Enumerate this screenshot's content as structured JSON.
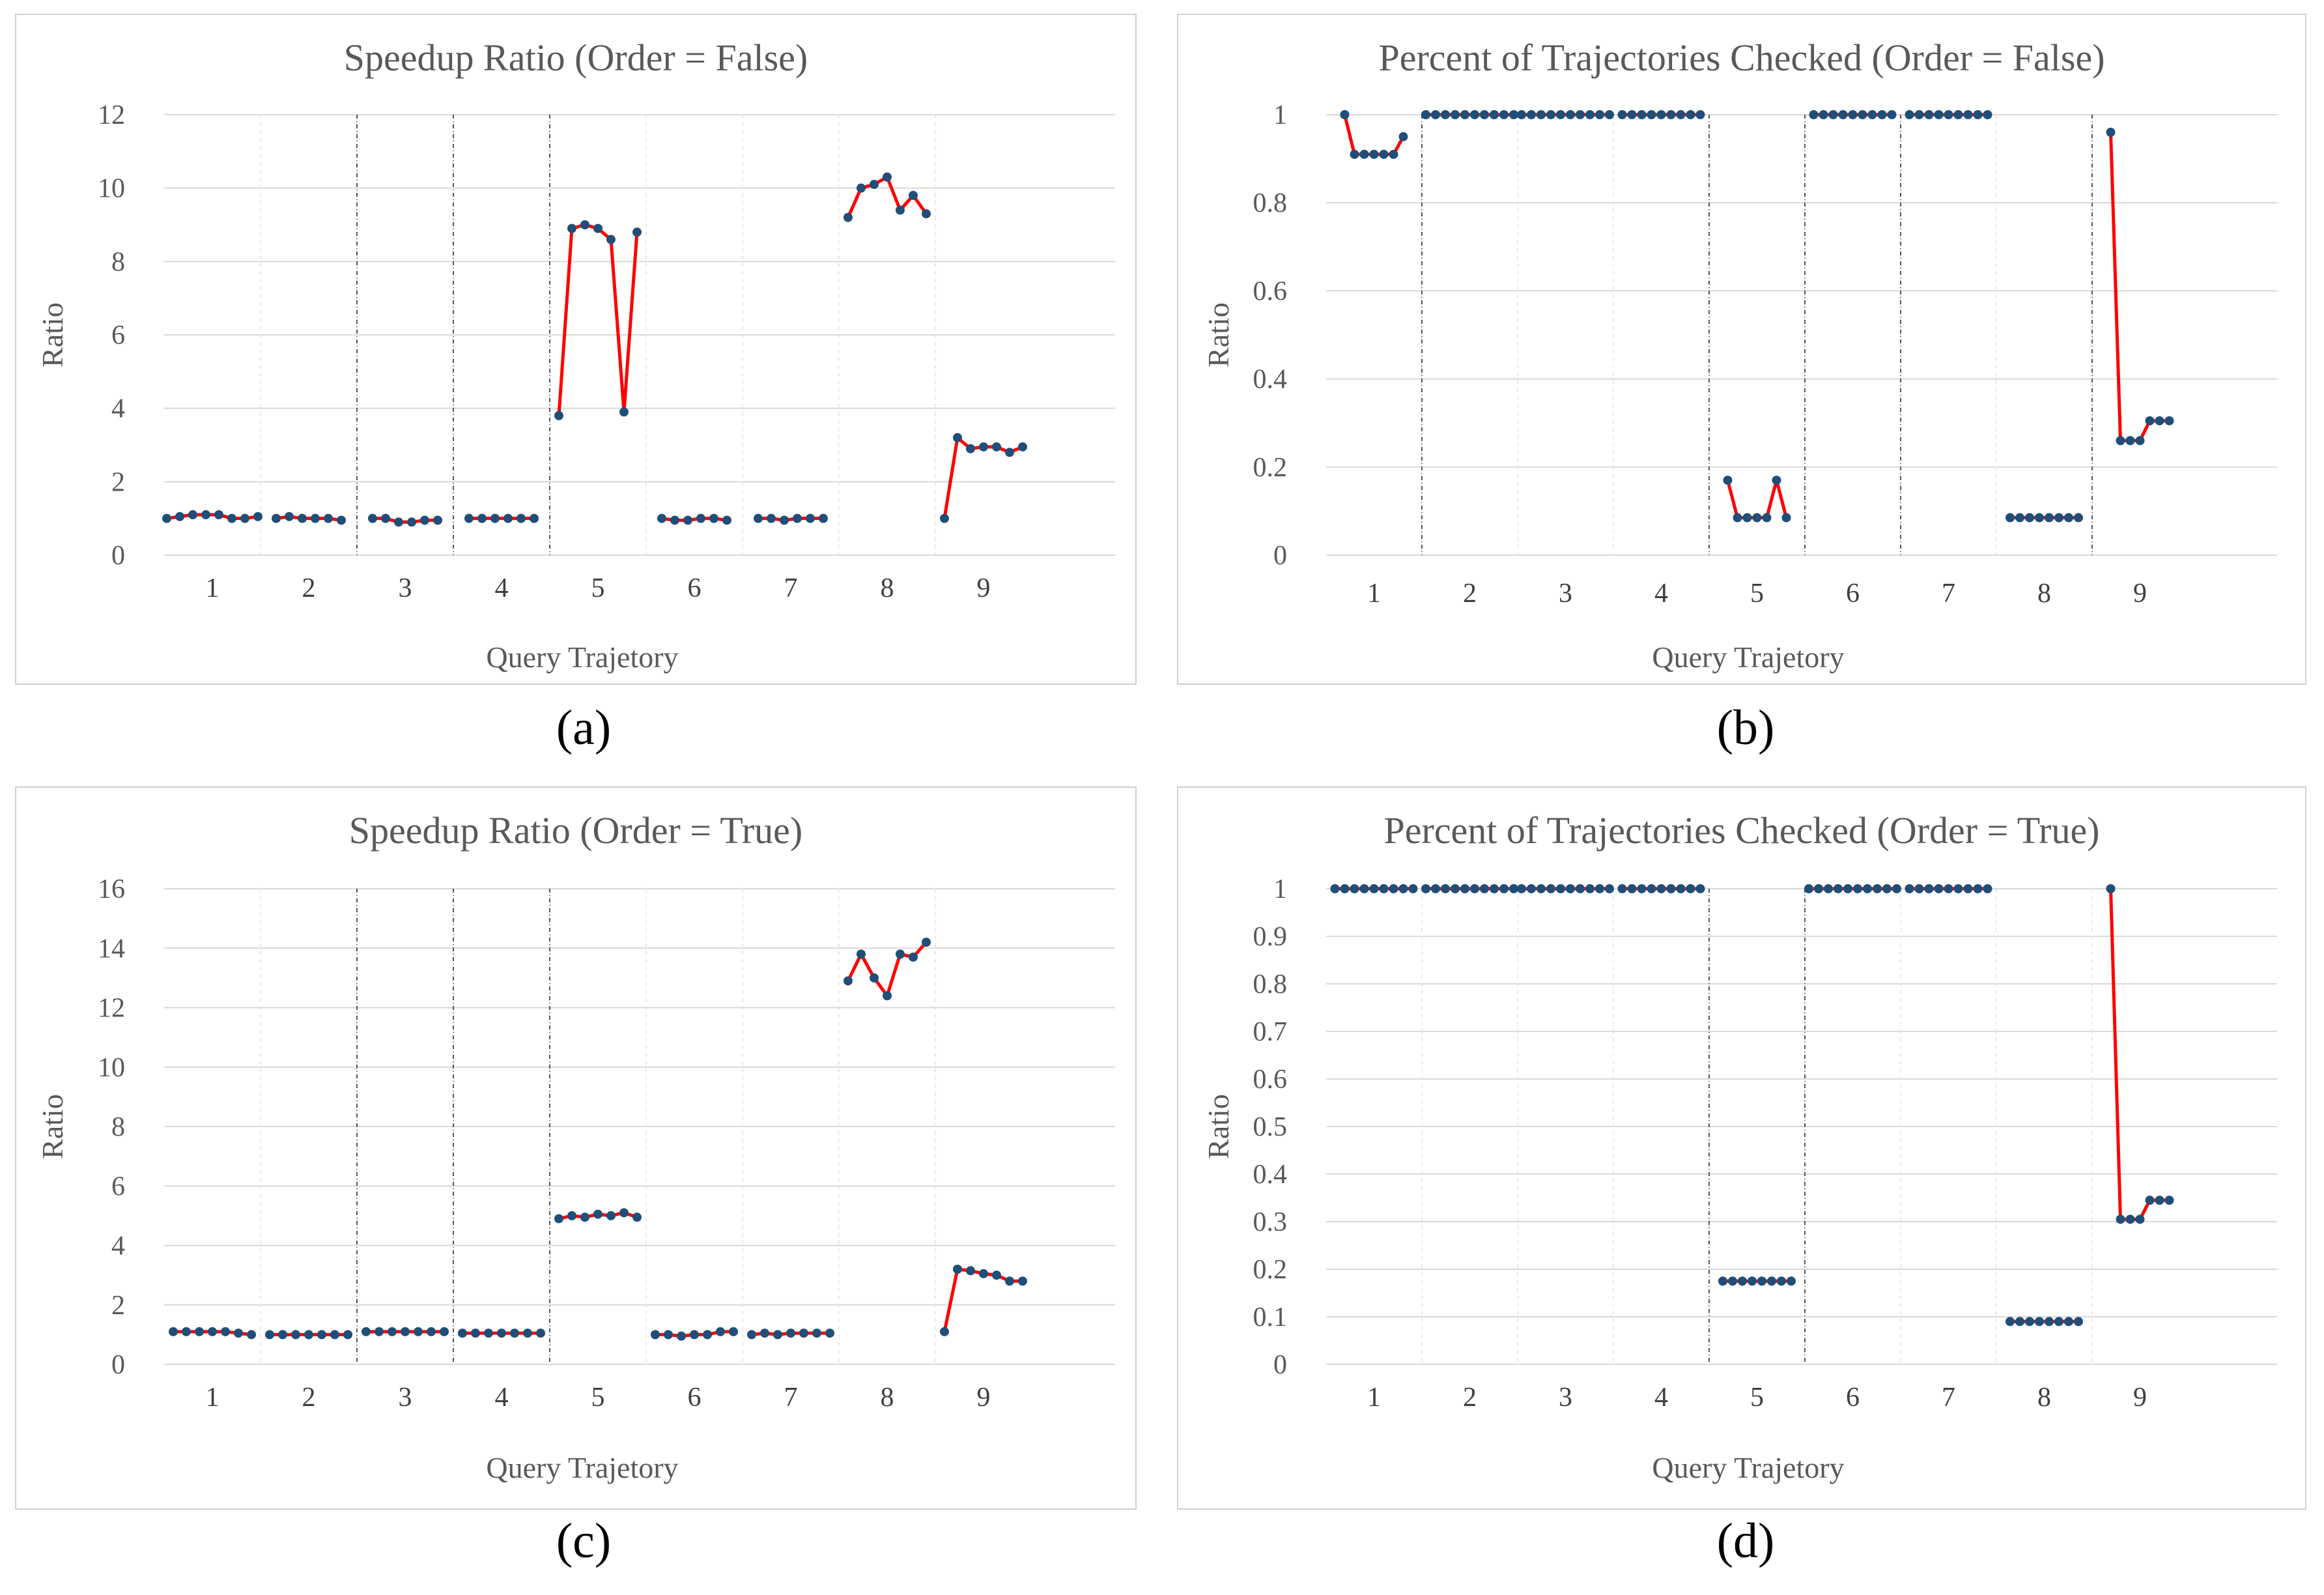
{
  "figure": {
    "panels": [
      {
        "panel_label": "(a)",
        "chart_data": {
          "type": "line",
          "title": "Speedup Ratio (Order =  False)",
          "xlabel": "Query Trajetory",
          "ylabel": "Ratio",
          "ylim": [
            0,
            12
          ],
          "yticks": [
            "0",
            "2",
            "4",
            "6",
            "8",
            "10",
            "12"
          ],
          "categories": [
            "1",
            "2",
            "3",
            "4",
            "5",
            "6",
            "7",
            "8",
            "9"
          ],
          "dividers_after": [
            2,
            3,
            4
          ],
          "grid": true,
          "series": [
            {
              "values": [
                [
                  1.0,
                  1.05,
                  1.1,
                  1.1,
                  1.1,
                  1.0,
                  1.0,
                  1.05
                ],
                [
                  1.0,
                  1.05,
                  1.0,
                  1.0,
                  1.0,
                  0.95
                ],
                [
                  1.0,
                  1.0,
                  0.9,
                  0.9,
                  0.95,
                  0.95
                ],
                [
                  1.0,
                  1.0,
                  1.0,
                  1.0,
                  1.0,
                  1.0
                ],
                [
                  3.8,
                  8.9,
                  9.0,
                  8.9,
                  8.6,
                  3.9,
                  8.8
                ],
                [
                  1.0,
                  0.95,
                  0.95,
                  1.0,
                  1.0,
                  0.95
                ],
                [
                  1.0,
                  1.0,
                  0.95,
                  1.0,
                  1.0,
                  1.0
                ],
                [
                  9.2,
                  10.0,
                  10.1,
                  10.3,
                  9.4,
                  9.8,
                  9.3
                ],
                [
                  1.0,
                  3.2,
                  2.9,
                  2.95,
                  2.95,
                  2.8,
                  2.95
                ]
              ]
            }
          ]
        }
      },
      {
        "panel_label": "(b)",
        "chart_data": {
          "type": "line",
          "title": "Percent of Trajectories Checked (Order = False)",
          "xlabel": "Query Trajetory",
          "ylabel": "Ratio",
          "ylim": [
            0,
            1
          ],
          "yticks": [
            "0",
            "0.2",
            "0.4",
            "0.6",
            "0.8",
            "1"
          ],
          "categories": [
            "1",
            "2",
            "3",
            "4",
            "5",
            "6",
            "7",
            "8",
            "9"
          ],
          "dividers_after": [
            1,
            4,
            5,
            6,
            8
          ],
          "grid": true,
          "series": [
            {
              "values": [
                [
                  1.0,
                  0.91,
                  0.91,
                  0.91,
                  0.91,
                  0.91,
                  0.95
                ],
                [
                  1,
                  1,
                  1,
                  1,
                  1,
                  1,
                  1,
                  1,
                  1,
                  1
                ],
                [
                  1,
                  1,
                  1,
                  1,
                  1,
                  1,
                  1,
                  1,
                  1,
                  1
                ],
                [
                  1,
                  1,
                  1,
                  1,
                  1,
                  1,
                  1,
                  1,
                  1
                ],
                [
                  0.17,
                  0.085,
                  0.085,
                  0.085,
                  0.085,
                  0.17,
                  0.085
                ],
                [
                  1,
                  1,
                  1,
                  1,
                  1,
                  1,
                  1,
                  1,
                  1
                ],
                [
                  1,
                  1,
                  1,
                  1,
                  1,
                  1,
                  1,
                  1,
                  1
                ],
                [
                  0.085,
                  0.085,
                  0.085,
                  0.085,
                  0.085,
                  0.085,
                  0.085,
                  0.085
                ],
                [
                  0.96,
                  0.26,
                  0.26,
                  0.26,
                  0.305,
                  0.305,
                  0.305
                ]
              ]
            }
          ]
        }
      },
      {
        "panel_label": "(c)",
        "chart_data": {
          "type": "line",
          "title": "Speedup Ratio (Order =  True)",
          "xlabel": "Query Trajetory",
          "ylabel": "Ratio",
          "ylim": [
            0,
            16
          ],
          "yticks": [
            "0",
            "2",
            "4",
            "6",
            "8",
            "10",
            "12",
            "14",
            "16"
          ],
          "categories": [
            "1",
            "2",
            "3",
            "4",
            "5",
            "6",
            "7",
            "8",
            "9"
          ],
          "dividers_after": [
            2,
            3,
            4
          ],
          "grid": true,
          "series": [
            {
              "values": [
                [
                  1.1,
                  1.1,
                  1.1,
                  1.1,
                  1.1,
                  1.05,
                  1.0
                ],
                [
                  1.0,
                  1.0,
                  1.0,
                  1.0,
                  1.0,
                  1.0,
                  1.0
                ],
                [
                  1.1,
                  1.1,
                  1.1,
                  1.1,
                  1.1,
                  1.1,
                  1.1
                ],
                [
                  1.05,
                  1.05,
                  1.05,
                  1.05,
                  1.05,
                  1.05,
                  1.05
                ],
                [
                  4.9,
                  5.0,
                  4.95,
                  5.05,
                  5.0,
                  5.1,
                  4.95
                ],
                [
                  1.0,
                  1.0,
                  0.95,
                  1.0,
                  1.0,
                  1.1,
                  1.1
                ],
                [
                  1.0,
                  1.05,
                  1.0,
                  1.05,
                  1.05,
                  1.05,
                  1.05
                ],
                [
                  12.9,
                  13.8,
                  13.0,
                  12.4,
                  13.8,
                  13.7,
                  14.2
                ],
                [
                  1.1,
                  3.2,
                  3.15,
                  3.05,
                  3.0,
                  2.8,
                  2.8
                ]
              ]
            }
          ]
        }
      },
      {
        "panel_label": "(d)",
        "chart_data": {
          "type": "line",
          "title": "Percent of Trajectories Checked (Order = True)",
          "xlabel": "Query Trajetory",
          "ylabel": "Ratio",
          "ylim": [
            0,
            1
          ],
          "yticks": [
            "0",
            "0.1",
            "0.2",
            "0.3",
            "0.4",
            "0.5",
            "0.6",
            "0.7",
            "0.8",
            "0.9",
            "1"
          ],
          "categories": [
            "1",
            "2",
            "3",
            "4",
            "5",
            "6",
            "7",
            "8",
            "9"
          ],
          "dividers_after": [
            4,
            5
          ],
          "grid": true,
          "series": [
            {
              "values": [
                [
                  1,
                  1,
                  1,
                  1,
                  1,
                  1,
                  1,
                  1,
                  1
                ],
                [
                  1,
                  1,
                  1,
                  1,
                  1,
                  1,
                  1,
                  1,
                  1,
                  1
                ],
                [
                  1,
                  1,
                  1,
                  1,
                  1,
                  1,
                  1,
                  1,
                  1,
                  1
                ],
                [
                  1,
                  1,
                  1,
                  1,
                  1,
                  1,
                  1,
                  1,
                  1
                ],
                [
                  0.175,
                  0.175,
                  0.175,
                  0.175,
                  0.175,
                  0.175,
                  0.175,
                  0.175
                ],
                [
                  1,
                  1,
                  1,
                  1,
                  1,
                  1,
                  1,
                  1,
                  1,
                  1
                ],
                [
                  1,
                  1,
                  1,
                  1,
                  1,
                  1,
                  1,
                  1,
                  1
                ],
                [
                  0.09,
                  0.09,
                  0.09,
                  0.09,
                  0.09,
                  0.09,
                  0.09,
                  0.09
                ],
                [
                  1.0,
                  0.305,
                  0.305,
                  0.305,
                  0.345,
                  0.345,
                  0.345
                ]
              ]
            }
          ]
        }
      }
    ]
  }
}
